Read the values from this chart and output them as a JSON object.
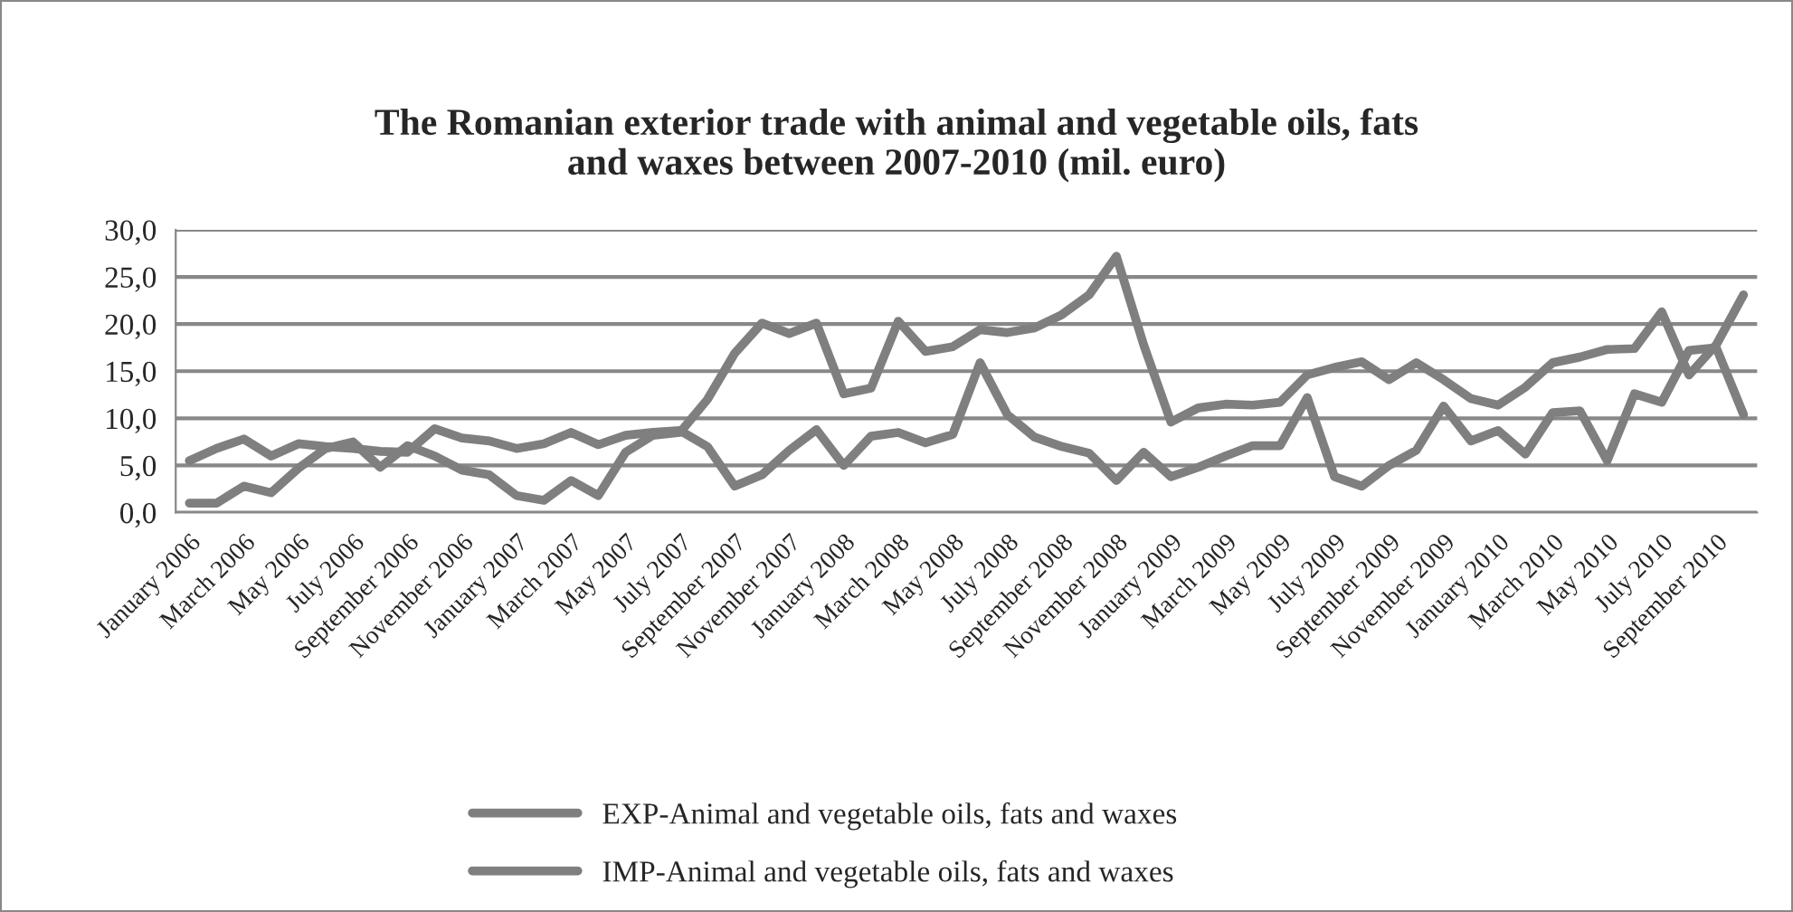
{
  "chart_data": {
    "type": "line",
    "title": "The Romanian exterior trade with animal and vegetable oils, fats\nand waxes between 2007-2010 (mil. euro)",
    "categories": [
      "January 2006",
      null,
      "March 2006",
      null,
      "May 2006",
      null,
      "July 2006",
      null,
      "September 2006",
      null,
      "November 2006",
      null,
      "January 2007",
      null,
      "March 2007",
      null,
      "May 2007",
      null,
      "July 2007",
      null,
      "September 2007",
      null,
      "November 2007",
      null,
      "January 2008",
      null,
      "March 2008",
      null,
      "May 2008",
      null,
      "July 2008",
      null,
      "September 2008",
      null,
      "November 2008",
      null,
      "January 2009",
      null,
      "March 2009",
      null,
      "May 2009",
      null,
      "July 2009",
      null,
      "September 2009",
      null,
      "November 2009",
      null,
      "January 2010",
      null,
      "March 2010",
      null,
      "May 2010",
      null,
      "July 2010",
      null,
      "September 2010",
      null
    ],
    "series": [
      {
        "name": "EXP-Animal and vegetable oils, fats and waxes",
        "color": "#7f7f7f",
        "values": [
          5.5,
          6.8,
          7.8,
          6.0,
          7.3,
          7.0,
          6.8,
          6.5,
          6.4,
          8.9,
          7.9,
          7.6,
          6.8,
          7.3,
          8.5,
          7.2,
          8.2,
          8.5,
          8.7,
          7.0,
          2.8,
          4.0,
          6.6,
          8.8,
          5.0,
          8.1,
          8.5,
          7.4,
          8.3,
          15.9,
          10.4,
          8.0,
          7.0,
          6.3,
          3.4,
          6.4,
          3.8,
          4.8,
          6.0,
          7.1,
          7.1,
          12.2,
          3.8,
          2.8,
          5.0,
          6.6,
          11.3,
          7.6,
          8.7,
          6.2,
          10.6,
          10.8,
          5.5,
          12.6,
          11.7,
          17.2,
          17.5,
          10.4
        ]
      },
      {
        "name": "IMP-Animal and vegetable oils, fats and waxes",
        "color": "#7f7f7f",
        "values": [
          1.0,
          1.0,
          2.8,
          2.1,
          4.7,
          6.8,
          7.5,
          4.8,
          7.1,
          6.0,
          4.5,
          4.0,
          1.8,
          1.3,
          3.4,
          1.8,
          6.4,
          8.2,
          8.5,
          12.0,
          16.9,
          20.1,
          19.0,
          20.1,
          12.6,
          13.2,
          20.3,
          17.1,
          17.6,
          19.4,
          19.1,
          19.6,
          21.0,
          23.1,
          27.2,
          17.8,
          9.6,
          11.1,
          11.5,
          11.4,
          11.7,
          14.6,
          15.4,
          16.0,
          14.1,
          15.9,
          14.1,
          12.1,
          11.4,
          13.3,
          15.9,
          16.5,
          17.3,
          17.4,
          21.3,
          14.6,
          17.8,
          23.1
        ]
      }
    ],
    "ylim": [
      0,
      30
    ],
    "yticks": [
      {
        "value": 0,
        "label": "0,0"
      },
      {
        "value": 5,
        "label": "5,0"
      },
      {
        "value": 10,
        "label": "10,0"
      },
      {
        "value": 15,
        "label": "15,0"
      },
      {
        "value": 20,
        "label": "20,0"
      },
      {
        "value": 25,
        "label": "25,0"
      },
      {
        "value": 30,
        "label": "30,0"
      }
    ],
    "grid": "y",
    "legend": "bottom",
    "marker": "none",
    "line_style": "solid"
  }
}
